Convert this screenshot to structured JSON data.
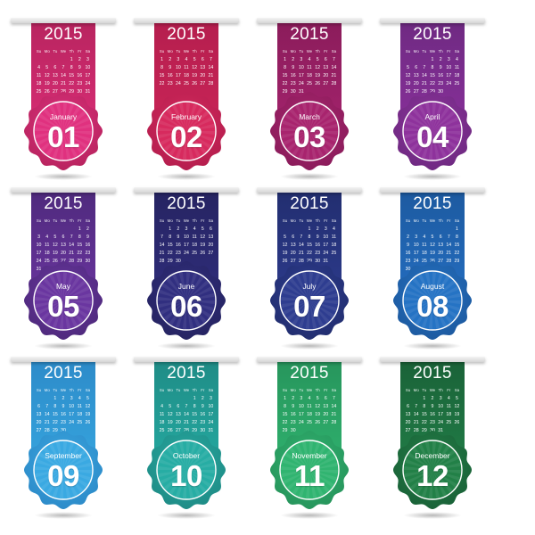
{
  "weekdays": [
    "Su",
    "Mo",
    "Tu",
    "We",
    "Th",
    "Fr",
    "Sa"
  ],
  "months": [
    {
      "name": "January",
      "number": "01",
      "year": "2015",
      "days": 31,
      "start_weekday": 4,
      "color_top": "#b8245f",
      "color_bottom": "#d42c72",
      "badge_color": "#e0317f"
    },
    {
      "name": "February",
      "number": "02",
      "year": "2015",
      "days": 28,
      "start_weekday": 0,
      "color_top": "#b51e4e",
      "color_bottom": "#c72456",
      "badge_color": "#d72a5e"
    },
    {
      "name": "March",
      "number": "03",
      "year": "2015",
      "days": 31,
      "start_weekday": 0,
      "color_top": "#8b1c5b",
      "color_bottom": "#a0226a",
      "badge_color": "#a8246e"
    },
    {
      "name": "April",
      "number": "04",
      "year": "2015",
      "days": 30,
      "start_weekday": 3,
      "color_top": "#6f2a82",
      "color_bottom": "#852f97",
      "badge_color": "#8e329c"
    },
    {
      "name": "May",
      "number": "05",
      "year": "2015",
      "days": 31,
      "start_weekday": 5,
      "color_top": "#4f2a7d",
      "color_bottom": "#66339a",
      "badge_color": "#6a36a0"
    },
    {
      "name": "June",
      "number": "06",
      "year": "2015",
      "days": 30,
      "start_weekday": 1,
      "color_top": "#262462",
      "color_bottom": "#2e2c78",
      "badge_color": "#312f80"
    },
    {
      "name": "July",
      "number": "07",
      "year": "2015",
      "days": 31,
      "start_weekday": 3,
      "color_top": "#222e70",
      "color_bottom": "#2b3988",
      "badge_color": "#2e3d90"
    },
    {
      "name": "August",
      "number": "08",
      "year": "2015",
      "days": 31,
      "start_weekday": 6,
      "color_top": "#1d5aa0",
      "color_bottom": "#236bbc",
      "badge_color": "#2573c4"
    },
    {
      "name": "September",
      "number": "09",
      "year": "2015",
      "days": 30,
      "start_weekday": 2,
      "color_top": "#2d8bc9",
      "color_bottom": "#35a2dc",
      "badge_color": "#3aa9e2"
    },
    {
      "name": "October",
      "number": "10",
      "year": "2015",
      "days": 31,
      "start_weekday": 4,
      "color_top": "#1f8c86",
      "color_bottom": "#24a69e",
      "badge_color": "#27ada4"
    },
    {
      "name": "November",
      "number": "11",
      "year": "2015",
      "days": 30,
      "start_weekday": 0,
      "color_top": "#27955c",
      "color_bottom": "#2eae6c",
      "badge_color": "#30b470"
    },
    {
      "name": "December",
      "number": "12",
      "year": "2015",
      "days": 31,
      "start_weekday": 2,
      "color_top": "#1a6238",
      "color_bottom": "#207a45",
      "badge_color": "#228047"
    }
  ]
}
